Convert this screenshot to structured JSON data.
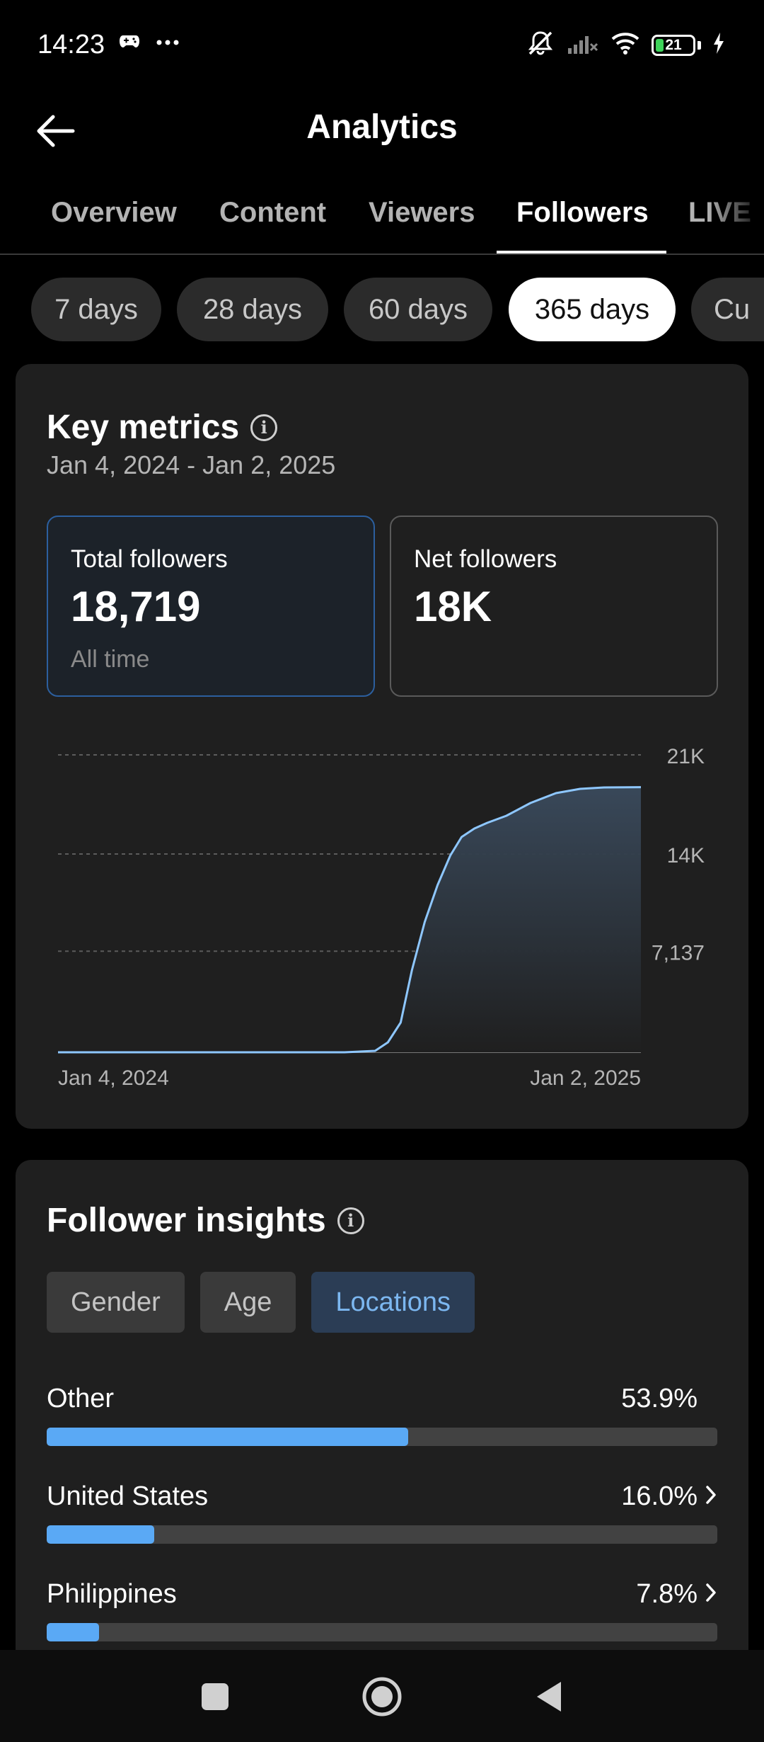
{
  "status_bar": {
    "time": "14:23",
    "battery_level": "21",
    "icons": [
      "gamepad-icon",
      "more-dots-icon",
      "mute-icon",
      "signal-icon",
      "wifi-icon",
      "battery-icon",
      "charging-icon"
    ]
  },
  "header": {
    "title": "Analytics",
    "back_icon": "arrow-left-icon"
  },
  "tabs": [
    {
      "label": "Overview",
      "active": false
    },
    {
      "label": "Content",
      "active": false
    },
    {
      "label": "Viewers",
      "active": false
    },
    {
      "label": "Followers",
      "active": true
    },
    {
      "label": "LIVE",
      "active": false
    }
  ],
  "ranges": [
    {
      "label": "7 days",
      "active": false
    },
    {
      "label": "28 days",
      "active": false
    },
    {
      "label": "60 days",
      "active": false
    },
    {
      "label": "365 days",
      "active": true
    },
    {
      "label": "Cu",
      "active": false
    }
  ],
  "key_metrics": {
    "title": "Key metrics",
    "date_range": "Jan 4, 2024 - Jan 2, 2025",
    "total": {
      "label": "Total followers",
      "value": "18,719",
      "sub": "All time"
    },
    "net": {
      "label": "Net followers",
      "value": "18K"
    }
  },
  "chart_data": {
    "type": "area",
    "x_start_label": "Jan 4, 2024",
    "x_end_label": "Jan 2, 2025",
    "ytick_labels": [
      "21K",
      "14K",
      "7,137"
    ],
    "ylim": [
      0,
      21000
    ],
    "grid": true,
    "x": [
      "Jan 4, 2024",
      "Feb 1, 2024",
      "Mar 1, 2024",
      "Apr 1, 2024",
      "May 1, 2024",
      "Jun 1, 2024",
      "Jul 1, 2024",
      "Jul 20, 2024",
      "Jul 28, 2024",
      "Aug 5, 2024",
      "Aug 12, 2024",
      "Aug 20, 2024",
      "Aug 28, 2024",
      "Sep 5, 2024",
      "Sep 12, 2024",
      "Sep 20, 2024",
      "Sep 28, 2024",
      "Oct 10, 2024",
      "Oct 25, 2024",
      "Nov 10, 2024",
      "Nov 25, 2024",
      "Dec 10, 2024",
      "Jan 2, 2025"
    ],
    "values": [
      0,
      0,
      0,
      0,
      0,
      0,
      0,
      100,
      700,
      2100,
      5800,
      9200,
      11800,
      13900,
      15200,
      15800,
      16200,
      16700,
      17600,
      18300,
      18600,
      18700,
      18719
    ],
    "color": "#8ec7ff"
  },
  "insights": {
    "title": "Follower insights",
    "segments": [
      {
        "label": "Gender",
        "active": false
      },
      {
        "label": "Age",
        "active": false
      },
      {
        "label": "Locations",
        "active": true
      }
    ],
    "locations": [
      {
        "name": "Other",
        "pct": "53.9%",
        "value": 53.9,
        "chevron": false
      },
      {
        "name": "United States",
        "pct": "16.0%",
        "value": 16.0,
        "chevron": true
      },
      {
        "name": "Philippines",
        "pct": "7.8%",
        "value": 7.8,
        "chevron": true
      }
    ]
  },
  "nav_bar": {
    "icons": [
      "recents-square-icon",
      "home-circle-icon",
      "back-triangle-icon"
    ]
  },
  "colors": {
    "accent": "#5aa9f5",
    "card_bg": "#1f1f1f",
    "active_segment_text": "#7cb7f0"
  }
}
